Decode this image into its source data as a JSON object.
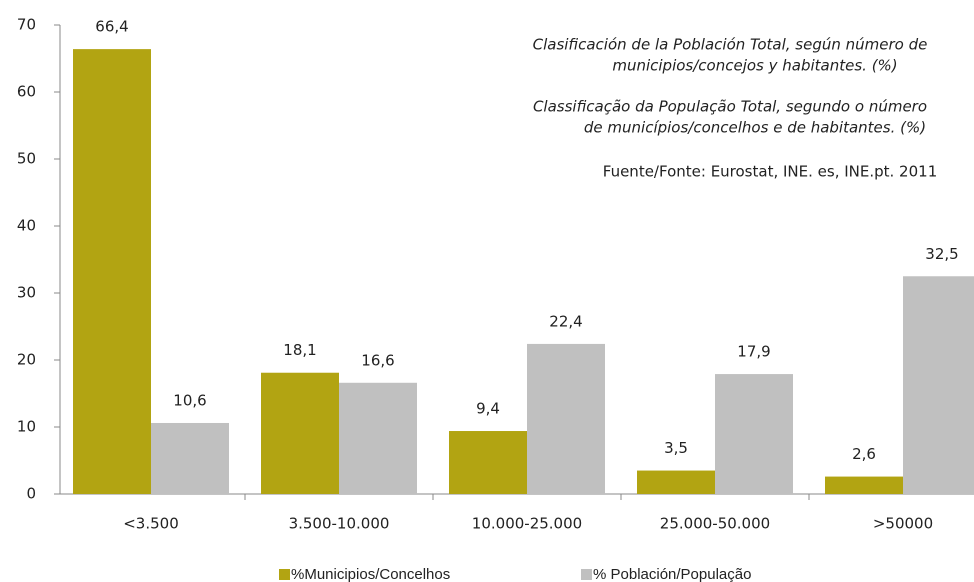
{
  "chart_data": {
    "type": "bar",
    "categories": [
      "<3.500",
      "3.500-10.000",
      "10.000-25.000",
      "25.000-50.000",
      ">50000"
    ],
    "series": [
      {
        "name": "%Municipios/Concelhos",
        "color": "#b2a412",
        "values": [
          66.4,
          18.1,
          9.4,
          3.5,
          2.6
        ],
        "value_labels": [
          "66,4",
          "18,1",
          "9,4",
          "3,5",
          "2,6"
        ]
      },
      {
        "name": "% Población/População",
        "color": "#c0c0c0",
        "values": [
          10.6,
          16.6,
          22.4,
          17.9,
          32.5
        ],
        "value_labels": [
          "10,6",
          "16,6",
          "22,4",
          "17,9",
          "32,5"
        ]
      }
    ],
    "ylim": [
      0,
      70
    ],
    "yticks": [
      0,
      10,
      20,
      30,
      40,
      50,
      60,
      70
    ],
    "notes": [
      [
        "Clasificación de la Población Total, según número de",
        "municipios/concejos y  habitantes. (%)"
      ],
      [
        "Classificação da População Total, segundo o número",
        "de municípios/concelhos e de habitantes. (%)"
      ]
    ],
    "source": "Fuente/Fonte: Eurostat, INE. es, INE.pt. 2011",
    "legend": "bottom"
  }
}
